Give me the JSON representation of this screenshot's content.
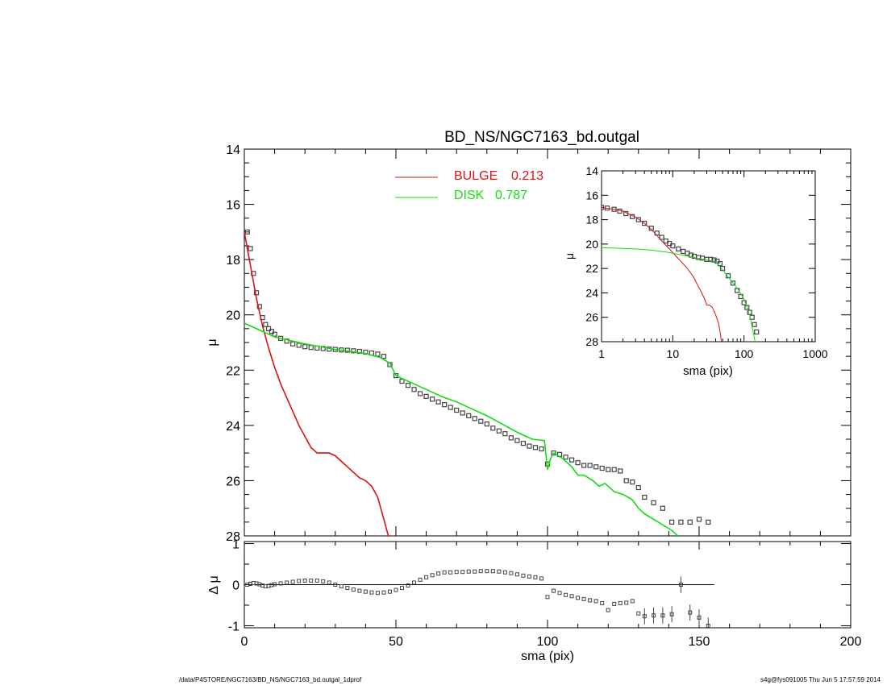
{
  "chart_data": [
    {
      "type": "scatter",
      "title": "BD_NS/NGC7163_bd.outgal",
      "xlabel": "",
      "ylabel": "μ",
      "xlim": [
        0,
        200
      ],
      "ylim": [
        28,
        14
      ],
      "y_inverted": true,
      "yticks": [
        14,
        16,
        18,
        20,
        22,
        24,
        26,
        28
      ],
      "legend_placement": "top-center",
      "legend": [
        {
          "name": "BULGE",
          "value": "0.213",
          "color": "#dd1111"
        },
        {
          "name": "DISK",
          "value": "0.787",
          "color": "#11dd11"
        }
      ],
      "series": [
        {
          "name": "data",
          "kind": "squares",
          "color": "#444444",
          "x": [
            1,
            2,
            3,
            4,
            5,
            6,
            7,
            8,
            9,
            10,
            12,
            14,
            16,
            18,
            20,
            22,
            24,
            26,
            28,
            30,
            32,
            34,
            36,
            38,
            40,
            42,
            44,
            46,
            48,
            50,
            52,
            54,
            56,
            58,
            60,
            62,
            64,
            66,
            68,
            70,
            72,
            74,
            76,
            78,
            80,
            82,
            84,
            86,
            88,
            90,
            92,
            94,
            96,
            98,
            100,
            102,
            104,
            106,
            108,
            110,
            112,
            114,
            116,
            118,
            120,
            122,
            124,
            126,
            128,
            130,
            132,
            135,
            138,
            141,
            144,
            147,
            150,
            153
          ],
          "y": [
            17.0,
            17.6,
            18.5,
            19.2,
            19.7,
            20.1,
            20.35,
            20.5,
            20.6,
            20.7,
            20.85,
            20.95,
            21.05,
            21.1,
            21.15,
            21.18,
            21.2,
            21.22,
            21.24,
            21.25,
            21.27,
            21.28,
            21.3,
            21.32,
            21.35,
            21.38,
            21.42,
            21.5,
            21.8,
            22.2,
            22.4,
            22.55,
            22.7,
            22.85,
            22.95,
            23.05,
            23.15,
            23.25,
            23.35,
            23.45,
            23.55,
            23.65,
            23.75,
            23.85,
            23.95,
            24.1,
            24.2,
            24.3,
            24.45,
            24.55,
            24.65,
            24.75,
            24.8,
            24.85,
            25.4,
            25.0,
            25.05,
            25.15,
            25.25,
            25.35,
            25.45,
            25.45,
            25.5,
            25.55,
            25.6,
            25.6,
            25.65,
            26.0,
            26.05,
            26.25,
            26.6,
            26.8,
            27.0,
            27.5,
            27.5,
            27.5,
            27.4,
            27.5
          ]
        },
        {
          "name": "BULGE",
          "kind": "line",
          "color": "#dd1111",
          "x": [
            0,
            2,
            4,
            6,
            8,
            10,
            12,
            14,
            16,
            18,
            20,
            22,
            24,
            26,
            28,
            30,
            32,
            34,
            36,
            38,
            40,
            42,
            44,
            45,
            46,
            47,
            47.5,
            48
          ],
          "y": [
            17.0,
            18.2,
            19.4,
            20.4,
            21.2,
            21.9,
            22.5,
            23.0,
            23.5,
            24.0,
            24.4,
            24.8,
            25.0,
            25.0,
            25.0,
            25.1,
            25.3,
            25.5,
            25.7,
            25.9,
            26.0,
            26.2,
            26.6,
            27.0,
            27.4,
            27.8,
            28.0,
            28.0
          ]
        },
        {
          "name": "DISK",
          "kind": "line",
          "color": "#11dd11",
          "x": [
            0,
            10,
            20,
            30,
            40,
            45,
            48,
            50,
            55,
            60,
            65,
            70,
            75,
            80,
            85,
            90,
            95,
            99,
            100,
            101,
            102,
            105,
            108,
            110,
            112,
            115,
            117,
            119,
            122,
            125,
            128,
            130,
            132,
            135,
            138,
            141,
            143
          ],
          "y": [
            20.3,
            20.8,
            21.05,
            21.25,
            21.4,
            21.55,
            21.75,
            22.2,
            22.45,
            22.7,
            22.95,
            23.15,
            23.4,
            23.65,
            23.95,
            24.25,
            24.5,
            24.55,
            25.6,
            25.2,
            25.0,
            25.2,
            25.5,
            25.8,
            25.8,
            26.0,
            26.2,
            26.1,
            26.4,
            26.5,
            26.7,
            27.0,
            27.2,
            27.4,
            27.6,
            27.8,
            28.0
          ]
        }
      ]
    },
    {
      "type": "scatter",
      "title": "",
      "xlabel": "sma (pix)",
      "ylabel": "Δ μ",
      "xlim": [
        0,
        200
      ],
      "ylim": [
        -1.05,
        1.05
      ],
      "yticks": [
        1,
        0,
        -1
      ],
      "xticks": [
        0,
        50,
        100,
        150,
        200
      ],
      "zero_line": {
        "from": 0,
        "to": 155
      },
      "series": [
        {
          "name": "residual",
          "kind": "squares",
          "color": "#444444",
          "x": [
            1,
            2,
            3,
            4,
            5,
            6,
            7,
            8,
            9,
            10,
            12,
            14,
            16,
            18,
            20,
            22,
            24,
            26,
            28,
            30,
            32,
            34,
            36,
            38,
            40,
            42,
            44,
            46,
            48,
            50,
            52,
            54,
            56,
            58,
            60,
            62,
            64,
            66,
            68,
            70,
            72,
            74,
            76,
            78,
            80,
            82,
            84,
            86,
            88,
            90,
            92,
            94,
            96,
            98,
            100,
            102,
            104,
            106,
            108,
            110,
            112,
            114,
            116,
            118,
            120,
            122,
            124,
            126,
            128,
            130,
            132,
            135,
            138,
            141,
            144,
            147,
            150,
            153
          ],
          "y": [
            0.0,
            0.02,
            0.04,
            0.03,
            0.01,
            -0.02,
            -0.04,
            -0.03,
            -0.01,
            0.01,
            0.03,
            0.05,
            0.07,
            0.09,
            0.1,
            0.1,
            0.1,
            0.08,
            0.05,
            0.0,
            -0.04,
            -0.08,
            -0.12,
            -0.15,
            -0.17,
            -0.19,
            -0.2,
            -0.19,
            -0.17,
            -0.13,
            -0.08,
            -0.02,
            0.05,
            0.12,
            0.18,
            0.23,
            0.27,
            0.3,
            0.3,
            0.31,
            0.31,
            0.32,
            0.32,
            0.33,
            0.33,
            0.33,
            0.32,
            0.3,
            0.28,
            0.25,
            0.22,
            0.2,
            0.18,
            0.15,
            -0.3,
            -0.15,
            -0.2,
            -0.25,
            -0.28,
            -0.32,
            -0.35,
            -0.38,
            -0.4,
            -0.45,
            -0.62,
            -0.47,
            -0.45,
            -0.44,
            -0.4,
            -0.7,
            -0.77,
            -0.75,
            -0.75,
            -0.72,
            0.0,
            -0.68,
            -0.8,
            -1.0
          ]
        }
      ]
    },
    {
      "type": "scatter",
      "title": "",
      "xlabel": "sma (pix)",
      "ylabel": "μ",
      "x_scale": "log",
      "xlim": [
        1,
        1000
      ],
      "ylim": [
        28,
        14
      ],
      "y_inverted": true,
      "xticks": [
        1,
        10,
        100,
        1000
      ],
      "yticks": [
        14,
        16,
        18,
        20,
        22,
        24,
        26,
        28
      ],
      "legend_placement": "none",
      "series": [
        {
          "name": "data",
          "kind": "squares",
          "color": "#444444",
          "x": [
            1,
            1.2,
            1.5,
            1.8,
            2.2,
            2.7,
            3.3,
            4,
            5,
            6,
            7,
            8,
            9,
            10,
            12,
            14,
            16,
            18,
            20,
            23,
            26,
            30,
            34,
            38,
            42,
            46,
            50,
            60,
            70,
            80,
            90,
            100,
            110,
            120,
            130,
            140,
            150
          ],
          "y": [
            17.0,
            17.05,
            17.15,
            17.3,
            17.5,
            17.75,
            18.0,
            18.3,
            18.7,
            19.1,
            19.45,
            19.75,
            19.95,
            20.15,
            20.4,
            20.6,
            20.75,
            20.9,
            21.0,
            21.1,
            21.15,
            21.25,
            21.25,
            21.3,
            21.4,
            21.6,
            22.0,
            22.6,
            23.2,
            23.8,
            24.3,
            24.8,
            25.2,
            25.6,
            26.0,
            26.6,
            27.2
          ]
        },
        {
          "name": "BULGE",
          "kind": "line",
          "color": "#dd1111",
          "x": [
            1,
            1.5,
            2,
            3,
            4,
            5,
            6,
            7,
            8,
            10,
            12,
            15,
            18,
            20,
            22,
            25,
            28,
            30,
            33,
            36,
            40,
            44,
            47,
            48
          ],
          "y": [
            17.0,
            17.15,
            17.3,
            17.8,
            18.3,
            18.8,
            19.3,
            19.75,
            20.1,
            20.7,
            21.2,
            21.8,
            22.4,
            22.8,
            23.3,
            23.9,
            24.5,
            25.0,
            25.0,
            25.2,
            25.8,
            26.5,
            27.5,
            28.0
          ]
        },
        {
          "name": "DISK",
          "kind": "line",
          "color": "#11dd11",
          "x": [
            1,
            2,
            3,
            5,
            8,
            10,
            15,
            20,
            30,
            40,
            50,
            60,
            80,
            100,
            120,
            143
          ],
          "y": [
            20.3,
            20.35,
            20.4,
            20.5,
            20.65,
            20.75,
            20.95,
            21.1,
            21.3,
            21.45,
            22.1,
            22.7,
            23.6,
            24.5,
            25.8,
            28.0
          ]
        }
      ]
    }
  ],
  "footer": {
    "left": "/data/P4STORE/NGC7163/BD_NS/NGC7163_bd.outgal_1dprof",
    "right": "s4g@fys091005  Thu Jun  5 17:57:59 2014"
  }
}
